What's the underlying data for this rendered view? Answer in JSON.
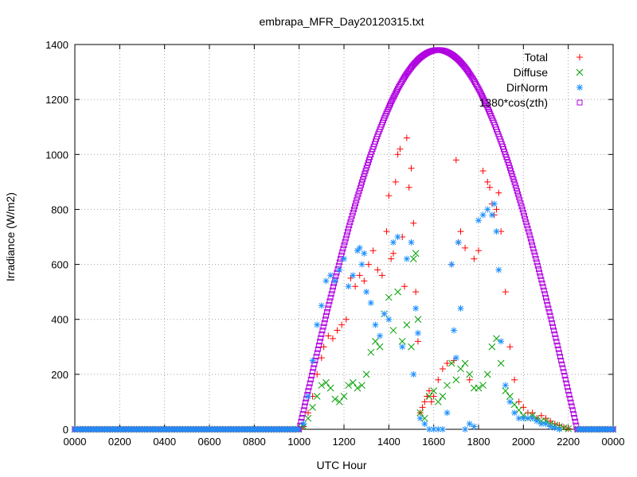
{
  "chart_data": {
    "type": "scatter",
    "title": "embrapa_MFR_Day20120315.txt",
    "xlabel": "UTC Hour",
    "ylabel": "Irradiance (W/m2)",
    "xlim": [
      0,
      2400
    ],
    "ylim": [
      0,
      1400
    ],
    "x_ticks": [
      "0000",
      "0200",
      "0400",
      "0600",
      "0800",
      "1000",
      "1200",
      "1400",
      "1600",
      "1800",
      "2000",
      "2200",
      "0000"
    ],
    "y_ticks": [
      "0",
      "200",
      "400",
      "600",
      "800",
      "1000",
      "1200",
      "1400"
    ],
    "grid": true,
    "legend_position": "top-right",
    "series": [
      {
        "name": "Total",
        "marker": "plus",
        "color": "#ff0000",
        "x": [
          1020,
          1040,
          1060,
          1080,
          1100,
          1110,
          1130,
          1150,
          1170,
          1190,
          1210,
          1230,
          1250,
          1270,
          1290,
          1310,
          1330,
          1350,
          1370,
          1390,
          1400,
          1410,
          1420,
          1430,
          1440,
          1450,
          1460,
          1470,
          1480,
          1490,
          1500,
          1510,
          1520,
          1530,
          1540,
          1550,
          1560,
          1570,
          1580,
          1590,
          1600,
          1620,
          1640,
          1660,
          1680,
          1690,
          1700,
          1710,
          1720,
          1740,
          1760,
          1780,
          1800,
          1820,
          1840,
          1850,
          1860,
          1870,
          1880,
          1890,
          1900,
          1920,
          1940,
          1960,
          1980,
          2000,
          2020,
          2040,
          2060,
          2080,
          2100,
          2120,
          2140,
          2160,
          2180,
          2200
        ],
        "y": [
          10,
          60,
          120,
          200,
          260,
          300,
          340,
          330,
          360,
          380,
          400,
          550,
          520,
          560,
          540,
          600,
          650,
          580,
          560,
          720,
          850,
          620,
          640,
          900,
          1000,
          1020,
          700,
          520,
          1060,
          880,
          950,
          750,
          500,
          320,
          60,
          80,
          100,
          120,
          140,
          100,
          120,
          180,
          220,
          240,
          600,
          250,
          980,
          680,
          720,
          660,
          180,
          620,
          650,
          940,
          900,
          880,
          820,
          780,
          800,
          860,
          720,
          500,
          300,
          180,
          100,
          80,
          60,
          60,
          40,
          50,
          40,
          30,
          20,
          15,
          8,
          2
        ]
      },
      {
        "name": "Diffuse",
        "marker": "cross",
        "color": "#00a000",
        "x": [
          1020,
          1040,
          1060,
          1080,
          1100,
          1120,
          1140,
          1160,
          1180,
          1200,
          1220,
          1240,
          1260,
          1280,
          1300,
          1320,
          1340,
          1360,
          1380,
          1400,
          1420,
          1440,
          1460,
          1480,
          1500,
          1510,
          1520,
          1530,
          1540,
          1560,
          1580,
          1600,
          1620,
          1640,
          1660,
          1680,
          1700,
          1720,
          1740,
          1760,
          1780,
          1800,
          1820,
          1840,
          1860,
          1880,
          1900,
          1920,
          1940,
          1960,
          1980,
          2000,
          2020,
          2040,
          2060,
          2080,
          2100,
          2120,
          2140,
          2160,
          2180,
          2200
        ],
        "y": [
          10,
          40,
          80,
          120,
          160,
          170,
          150,
          110,
          100,
          120,
          160,
          170,
          150,
          160,
          200,
          280,
          320,
          300,
          420,
          480,
          360,
          500,
          320,
          380,
          300,
          620,
          640,
          400,
          60,
          40,
          120,
          140,
          100,
          120,
          160,
          240,
          180,
          220,
          240,
          200,
          150,
          150,
          160,
          200,
          300,
          330,
          240,
          140,
          120,
          90,
          70,
          50,
          40,
          50,
          40,
          30,
          30,
          20,
          15,
          10,
          5,
          2
        ]
      },
      {
        "name": "DirNorm",
        "marker": "star",
        "color": "#1e90ff",
        "x": [
          1020,
          1040,
          1060,
          1080,
          1100,
          1120,
          1140,
          1160,
          1180,
          1200,
          1220,
          1240,
          1260,
          1270,
          1280,
          1290,
          1300,
          1320,
          1340,
          1360,
          1380,
          1400,
          1420,
          1440,
          1460,
          1480,
          1500,
          1510,
          1520,
          1530,
          1540,
          1560,
          1580,
          1600,
          1620,
          1640,
          1660,
          1680,
          1690,
          1700,
          1710,
          1720,
          1740,
          1760,
          1780,
          1800,
          1820,
          1840,
          1860,
          1870,
          1880,
          1890,
          1900,
          1920,
          1940,
          1960,
          1980,
          2000,
          2020,
          2040,
          2060,
          2080,
          2100,
          2120,
          2140,
          2160
        ],
        "y": [
          20,
          120,
          250,
          380,
          450,
          540,
          560,
          540,
          580,
          620,
          520,
          560,
          650,
          660,
          600,
          640,
          500,
          460,
          380,
          340,
          420,
          400,
          680,
          700,
          300,
          620,
          680,
          200,
          440,
          350,
          40,
          20,
          0,
          0,
          0,
          0,
          60,
          600,
          360,
          260,
          680,
          440,
          0,
          20,
          10,
          760,
          780,
          800,
          780,
          820,
          720,
          580,
          320,
          160,
          100,
          60,
          40,
          40,
          40,
          40,
          30,
          20,
          20,
          10,
          5,
          0
        ]
      },
      {
        "name": "1380*cos(zth)",
        "marker": "square",
        "color": "#b000e0",
        "peak": 1380,
        "sunrise": 1000,
        "sunset": 2240
      }
    ]
  }
}
